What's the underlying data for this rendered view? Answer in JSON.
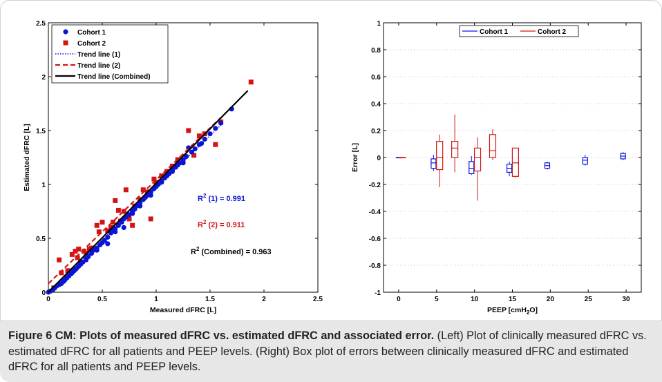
{
  "colors": {
    "cohort1": "#0a14d8",
    "cohort2": "#d41414",
    "combined": "#000000",
    "caption_bg": "#e7e7e7"
  },
  "caption": {
    "lead": "Figure 6 CM: Plots of measured dFRC vs. estimated dFRC and associated error.",
    "body": " (Left) Plot of clinically measured dFRC vs. estimated dFRC for all patients and PEEP levels. (Right) Box plot of errors between clinically measured dFRC and estimated dFRC for all patients and PEEP levels."
  },
  "chart_data": [
    {
      "type": "scatter",
      "xlabel": "Measured dFRC [L]",
      "ylabel": "Estimated dFRC [L]",
      "xlim": [
        0,
        2.5
      ],
      "ylim": [
        0,
        2.5
      ],
      "xticks": [
        "0",
        "0.5",
        "1",
        "1.5",
        "2",
        "2.5"
      ],
      "yticks": [
        "0",
        "0.5",
        "1",
        "1.5",
        "2",
        "2.5"
      ],
      "grid": false,
      "legend_position": "top-left",
      "series": [
        {
          "name": "Cohort 1",
          "marker": "circle",
          "points": [
            [
              0.0,
              0.0
            ],
            [
              0.02,
              0.01
            ],
            [
              0.04,
              0.02
            ],
            [
              0.06,
              0.04
            ],
            [
              0.08,
              0.06
            ],
            [
              0.1,
              0.07
            ],
            [
              0.12,
              0.08
            ],
            [
              0.14,
              0.1
            ],
            [
              0.15,
              0.11
            ],
            [
              0.17,
              0.13
            ],
            [
              0.19,
              0.15
            ],
            [
              0.21,
              0.17
            ],
            [
              0.22,
              0.18
            ],
            [
              0.24,
              0.2
            ],
            [
              0.26,
              0.22
            ],
            [
              0.28,
              0.24
            ],
            [
              0.3,
              0.26
            ],
            [
              0.32,
              0.28
            ],
            [
              0.35,
              0.31
            ],
            [
              0.37,
              0.33
            ],
            [
              0.4,
              0.36
            ],
            [
              0.42,
              0.39
            ],
            [
              0.45,
              0.41
            ],
            [
              0.48,
              0.44
            ],
            [
              0.5,
              0.46
            ],
            [
              0.52,
              0.48
            ],
            [
              0.55,
              0.51
            ],
            [
              0.58,
              0.55
            ],
            [
              0.6,
              0.57
            ],
            [
              0.62,
              0.59
            ],
            [
              0.65,
              0.62
            ],
            [
              0.68,
              0.65
            ],
            [
              0.7,
              0.68
            ],
            [
              0.72,
              0.7
            ],
            [
              0.75,
              0.72
            ],
            [
              0.78,
              0.75
            ],
            [
              0.8,
              0.77
            ],
            [
              0.82,
              0.8
            ],
            [
              0.85,
              0.83
            ],
            [
              0.88,
              0.86
            ],
            [
              0.9,
              0.88
            ],
            [
              0.92,
              0.9
            ],
            [
              0.95,
              0.93
            ],
            [
              0.98,
              0.96
            ],
            [
              1.0,
              0.98
            ],
            [
              1.02,
              1.0
            ],
            [
              1.05,
              1.03
            ],
            [
              1.08,
              1.06
            ],
            [
              1.1,
              1.08
            ],
            [
              1.12,
              1.1
            ],
            [
              1.15,
              1.13
            ],
            [
              1.18,
              1.16
            ],
            [
              1.2,
              1.18
            ],
            [
              1.22,
              1.2
            ],
            [
              1.25,
              1.23
            ],
            [
              1.28,
              1.26
            ],
            [
              1.3,
              1.34
            ],
            [
              1.33,
              1.3
            ],
            [
              1.36,
              1.33
            ],
            [
              1.4,
              1.37
            ],
            [
              1.45,
              1.42
            ],
            [
              1.5,
              1.47
            ],
            [
              1.55,
              1.52
            ],
            [
              1.6,
              1.57
            ],
            [
              1.7,
              1.7
            ],
            [
              0.55,
              0.45
            ],
            [
              0.7,
              0.6
            ],
            [
              0.85,
              0.8
            ],
            [
              1.05,
              1.02
            ],
            [
              0.35,
              0.3
            ],
            [
              0.25,
              0.21
            ],
            [
              0.45,
              0.39
            ],
            [
              0.62,
              0.56
            ],
            [
              0.78,
              0.73
            ],
            [
              0.95,
              0.9
            ],
            [
              1.15,
              1.12
            ],
            [
              1.25,
              1.2
            ],
            [
              1.42,
              1.38
            ]
          ]
        },
        {
          "name": "Cohort 2",
          "marker": "square",
          "points": [
            [
              0.05,
              0.04
            ],
            [
              0.1,
              0.3
            ],
            [
              0.12,
              0.18
            ],
            [
              0.18,
              0.2
            ],
            [
              0.22,
              0.35
            ],
            [
              0.25,
              0.38
            ],
            [
              0.28,
              0.4
            ],
            [
              0.3,
              0.28
            ],
            [
              0.33,
              0.38
            ],
            [
              0.35,
              0.36
            ],
            [
              0.38,
              0.4
            ],
            [
              0.4,
              0.41
            ],
            [
              0.45,
              0.62
            ],
            [
              0.47,
              0.56
            ],
            [
              0.5,
              0.65
            ],
            [
              0.55,
              0.57
            ],
            [
              0.58,
              0.6
            ],
            [
              0.6,
              0.65
            ],
            [
              0.62,
              0.85
            ],
            [
              0.65,
              0.76
            ],
            [
              0.7,
              0.75
            ],
            [
              0.72,
              0.95
            ],
            [
              0.75,
              0.68
            ],
            [
              0.78,
              0.62
            ],
            [
              0.8,
              0.8
            ],
            [
              0.85,
              0.86
            ],
            [
              0.88,
              0.95
            ],
            [
              0.92,
              0.93
            ],
            [
              0.95,
              0.68
            ],
            [
              0.98,
              1.05
            ],
            [
              1.0,
              1.02
            ],
            [
              1.05,
              1.08
            ],
            [
              1.1,
              1.12
            ],
            [
              1.15,
              1.17
            ],
            [
              1.2,
              1.23
            ],
            [
              1.25,
              1.21
            ],
            [
              1.3,
              1.5
            ],
            [
              1.35,
              1.27
            ],
            [
              1.4,
              1.45
            ],
            [
              1.45,
              1.47
            ],
            [
              1.55,
              1.37
            ],
            [
              1.6,
              1.58
            ],
            [
              1.88,
              1.95
            ],
            [
              0.27,
              0.32
            ],
            [
              0.42,
              0.4
            ],
            [
              0.67,
              0.66
            ]
          ]
        },
        {
          "name": "Trend line (1)",
          "style": "dotted",
          "x": [
            0,
            1.6
          ],
          "y": [
            0.0,
            1.55
          ]
        },
        {
          "name": "Trend line (2)",
          "style": "dashed",
          "x": [
            0,
            1.6
          ],
          "y": [
            0.08,
            1.62
          ]
        },
        {
          "name": "Trend line (Combined)",
          "style": "solid",
          "x": [
            0,
            1.85
          ],
          "y": [
            0.0,
            1.87
          ]
        }
      ],
      "annotations": [
        {
          "label": "R",
          "sup": "2",
          "rest": " (1) = 0.991",
          "series": "cohort1"
        },
        {
          "label": "R",
          "sup": "2",
          "rest": " (2) = 0.911",
          "series": "cohort2"
        },
        {
          "label": "R",
          "sup": "2",
          "rest": " (Combined) = 0.963",
          "series": "combined"
        }
      ]
    },
    {
      "type": "box",
      "xlabel": "PEEP [cmH2O]",
      "xlabel_parts": {
        "main": "PEEP [cmH",
        "sub": "2",
        "tail": "O]"
      },
      "ylabel": "Error [L]",
      "xlim": [
        -2,
        32
      ],
      "ylim": [
        -1,
        1
      ],
      "xticks": [
        "0",
        "5",
        "10",
        "15",
        "20",
        "25",
        "30"
      ],
      "xtick_values": [
        0,
        5,
        10,
        15,
        20,
        25,
        30
      ],
      "yticks": [
        "-1",
        "-0.8",
        "-0.6",
        "-0.4",
        "-0.2",
        "0",
        "0.2",
        "0.4",
        "0.6",
        "0.8",
        "1"
      ],
      "grid": "y-dotted",
      "legend_position": "top-center",
      "series": [
        {
          "name": "Cohort 1",
          "boxes": [
            {
              "x": 0,
              "min": 0.0,
              "q1": 0.0,
              "median": 0.0,
              "q3": 0.0,
              "max": 0.0
            },
            {
              "x": 4.6,
              "min": -0.1,
              "q1": -0.08,
              "median": -0.04,
              "q3": -0.01,
              "max": 0.02
            },
            {
              "x": 9.6,
              "min": -0.13,
              "q1": -0.12,
              "median": -0.08,
              "q3": -0.03,
              "max": 0.01
            },
            {
              "x": 14.6,
              "min": -0.14,
              "q1": -0.11,
              "median": -0.08,
              "q3": -0.05,
              "max": -0.03
            },
            {
              "x": 19.6,
              "min": -0.09,
              "q1": -0.08,
              "median": -0.06,
              "q3": -0.04,
              "max": -0.03
            },
            {
              "x": 24.6,
              "min": -0.06,
              "q1": -0.05,
              "median": -0.02,
              "q3": 0.0,
              "max": 0.02
            },
            {
              "x": 29.6,
              "min": -0.02,
              "q1": -0.01,
              "median": 0.01,
              "q3": 0.03,
              "max": 0.04
            }
          ]
        },
        {
          "name": "Cohort 2",
          "boxes": [
            {
              "x": 0.5,
              "min": 0.0,
              "q1": 0.0,
              "median": 0.0,
              "q3": 0.0,
              "max": 0.0
            },
            {
              "x": 5.4,
              "min": -0.22,
              "q1": -0.09,
              "median": 0.0,
              "q3": 0.12,
              "max": 0.17
            },
            {
              "x": 7.4,
              "min": -0.11,
              "q1": 0.0,
              "median": 0.07,
              "q3": 0.12,
              "max": 0.32
            },
            {
              "x": 10.4,
              "min": -0.32,
              "q1": -0.1,
              "median": 0.0,
              "q3": 0.07,
              "max": 0.15
            },
            {
              "x": 12.4,
              "min": -0.02,
              "q1": 0.0,
              "median": 0.05,
              "q3": 0.17,
              "max": 0.21
            },
            {
              "x": 15.4,
              "min": -0.15,
              "q1": -0.14,
              "median": -0.04,
              "q3": 0.07,
              "max": 0.07
            }
          ]
        }
      ]
    }
  ]
}
